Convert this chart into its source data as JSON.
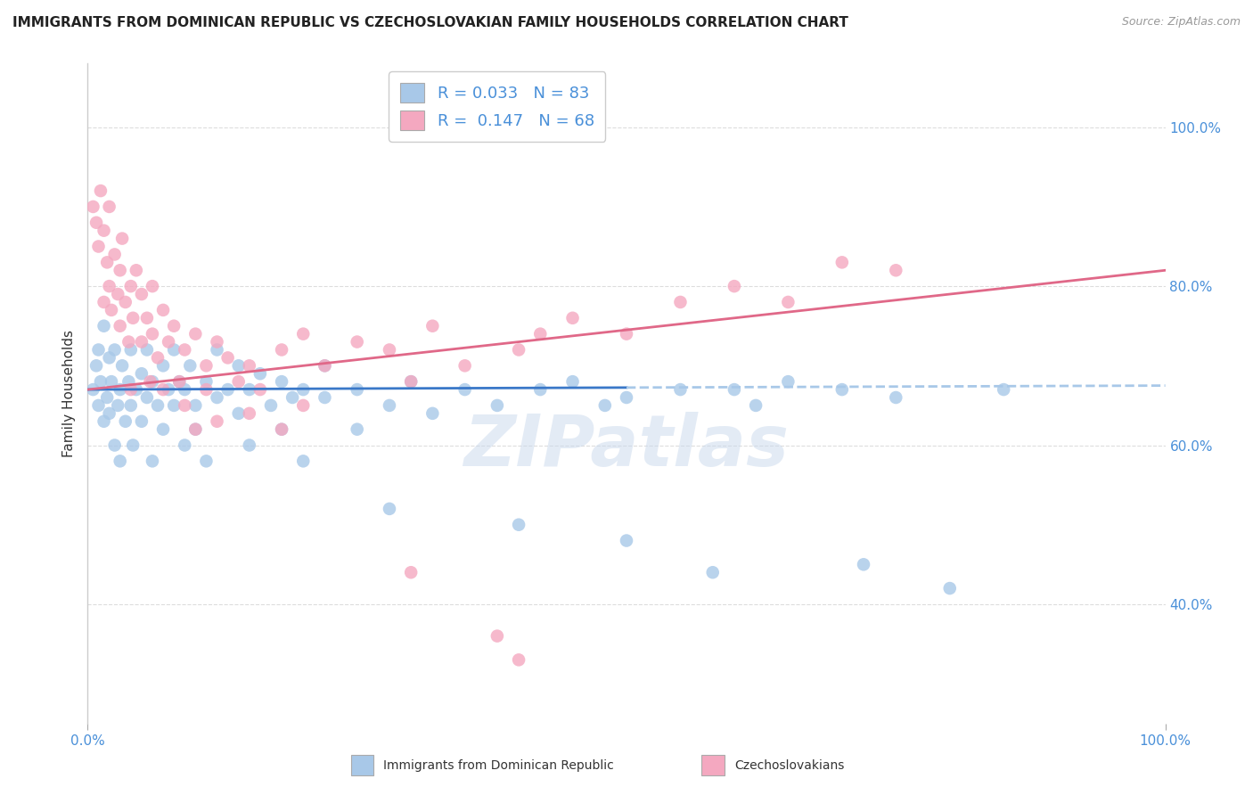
{
  "title": "IMMIGRANTS FROM DOMINICAN REPUBLIC VS CZECHOSLOVAKIAN FAMILY HOUSEHOLDS CORRELATION CHART",
  "source": "Source: ZipAtlas.com",
  "ylabel": "Family Households",
  "legend_blue_R": "0.033",
  "legend_blue_N": "83",
  "legend_pink_R": "0.147",
  "legend_pink_N": "68",
  "watermark": "ZIPatlas",
  "blue_color": "#a8c8e8",
  "pink_color": "#f4a8c0",
  "blue_line_solid_color": "#3a78c8",
  "blue_line_dash_color": "#a8c8e8",
  "pink_line_color": "#e06888",
  "blue_scatter": [
    [
      0.5,
      67.0
    ],
    [
      0.8,
      70.0
    ],
    [
      1.0,
      65.0
    ],
    [
      1.0,
      72.0
    ],
    [
      1.2,
      68.0
    ],
    [
      1.5,
      63.0
    ],
    [
      1.5,
      75.0
    ],
    [
      1.8,
      66.0
    ],
    [
      2.0,
      64.0
    ],
    [
      2.0,
      71.0
    ],
    [
      2.2,
      68.0
    ],
    [
      2.5,
      72.0
    ],
    [
      2.5,
      60.0
    ],
    [
      2.8,
      65.0
    ],
    [
      3.0,
      67.0
    ],
    [
      3.0,
      58.0
    ],
    [
      3.2,
      70.0
    ],
    [
      3.5,
      63.0
    ],
    [
      3.8,
      68.0
    ],
    [
      4.0,
      65.0
    ],
    [
      4.0,
      72.0
    ],
    [
      4.2,
      60.0
    ],
    [
      4.5,
      67.0
    ],
    [
      5.0,
      69.0
    ],
    [
      5.0,
      63.0
    ],
    [
      5.5,
      66.0
    ],
    [
      5.5,
      72.0
    ],
    [
      6.0,
      68.0
    ],
    [
      6.0,
      58.0
    ],
    [
      6.5,
      65.0
    ],
    [
      7.0,
      70.0
    ],
    [
      7.0,
      62.0
    ],
    [
      7.5,
      67.0
    ],
    [
      8.0,
      65.0
    ],
    [
      8.0,
      72.0
    ],
    [
      8.5,
      68.0
    ],
    [
      9.0,
      67.0
    ],
    [
      9.0,
      60.0
    ],
    [
      9.5,
      70.0
    ],
    [
      10.0,
      65.0
    ],
    [
      10.0,
      62.0
    ],
    [
      11.0,
      68.0
    ],
    [
      11.0,
      58.0
    ],
    [
      12.0,
      66.0
    ],
    [
      12.0,
      72.0
    ],
    [
      13.0,
      67.0
    ],
    [
      14.0,
      64.0
    ],
    [
      14.0,
      70.0
    ],
    [
      15.0,
      67.0
    ],
    [
      15.0,
      60.0
    ],
    [
      16.0,
      69.0
    ],
    [
      17.0,
      65.0
    ],
    [
      18.0,
      68.0
    ],
    [
      18.0,
      62.0
    ],
    [
      19.0,
      66.0
    ],
    [
      20.0,
      67.0
    ],
    [
      20.0,
      58.0
    ],
    [
      22.0,
      66.0
    ],
    [
      22.0,
      70.0
    ],
    [
      25.0,
      67.0
    ],
    [
      25.0,
      62.0
    ],
    [
      28.0,
      65.0
    ],
    [
      28.0,
      52.0
    ],
    [
      30.0,
      68.0
    ],
    [
      32.0,
      64.0
    ],
    [
      35.0,
      67.0
    ],
    [
      38.0,
      65.0
    ],
    [
      40.0,
      50.0
    ],
    [
      42.0,
      67.0
    ],
    [
      45.0,
      68.0
    ],
    [
      48.0,
      65.0
    ],
    [
      50.0,
      66.0
    ],
    [
      50.0,
      48.0
    ],
    [
      55.0,
      67.0
    ],
    [
      58.0,
      44.0
    ],
    [
      60.0,
      67.0
    ],
    [
      62.0,
      65.0
    ],
    [
      65.0,
      68.0
    ],
    [
      70.0,
      67.0
    ],
    [
      72.0,
      45.0
    ],
    [
      75.0,
      66.0
    ],
    [
      80.0,
      42.0
    ],
    [
      85.0,
      67.0
    ]
  ],
  "pink_scatter": [
    [
      0.5,
      90.0
    ],
    [
      0.8,
      88.0
    ],
    [
      1.0,
      85.0
    ],
    [
      1.2,
      92.0
    ],
    [
      1.5,
      87.0
    ],
    [
      1.5,
      78.0
    ],
    [
      1.8,
      83.0
    ],
    [
      2.0,
      80.0
    ],
    [
      2.0,
      90.0
    ],
    [
      2.2,
      77.0
    ],
    [
      2.5,
      84.0
    ],
    [
      2.8,
      79.0
    ],
    [
      3.0,
      82.0
    ],
    [
      3.0,
      75.0
    ],
    [
      3.2,
      86.0
    ],
    [
      3.5,
      78.0
    ],
    [
      3.8,
      73.0
    ],
    [
      4.0,
      80.0
    ],
    [
      4.0,
      67.0
    ],
    [
      4.2,
      76.0
    ],
    [
      4.5,
      82.0
    ],
    [
      5.0,
      73.0
    ],
    [
      5.0,
      79.0
    ],
    [
      5.5,
      76.0
    ],
    [
      5.8,
      68.0
    ],
    [
      6.0,
      74.0
    ],
    [
      6.0,
      80.0
    ],
    [
      6.5,
      71.0
    ],
    [
      7.0,
      77.0
    ],
    [
      7.0,
      67.0
    ],
    [
      7.5,
      73.0
    ],
    [
      8.0,
      75.0
    ],
    [
      8.5,
      68.0
    ],
    [
      9.0,
      72.0
    ],
    [
      9.0,
      65.0
    ],
    [
      10.0,
      74.0
    ],
    [
      10.0,
      62.0
    ],
    [
      11.0,
      70.0
    ],
    [
      11.0,
      67.0
    ],
    [
      12.0,
      73.0
    ],
    [
      12.0,
      63.0
    ],
    [
      13.0,
      71.0
    ],
    [
      14.0,
      68.0
    ],
    [
      15.0,
      70.0
    ],
    [
      15.0,
      64.0
    ],
    [
      16.0,
      67.0
    ],
    [
      18.0,
      72.0
    ],
    [
      18.0,
      62.0
    ],
    [
      20.0,
      74.0
    ],
    [
      20.0,
      65.0
    ],
    [
      22.0,
      70.0
    ],
    [
      25.0,
      73.0
    ],
    [
      28.0,
      72.0
    ],
    [
      30.0,
      68.0
    ],
    [
      30.0,
      44.0
    ],
    [
      32.0,
      75.0
    ],
    [
      35.0,
      70.0
    ],
    [
      38.0,
      36.0
    ],
    [
      40.0,
      72.0
    ],
    [
      40.0,
      33.0
    ],
    [
      42.0,
      74.0
    ],
    [
      45.0,
      76.0
    ],
    [
      50.0,
      74.0
    ],
    [
      55.0,
      78.0
    ],
    [
      60.0,
      80.0
    ],
    [
      65.0,
      78.0
    ],
    [
      70.0,
      83.0
    ],
    [
      75.0,
      82.0
    ]
  ],
  "xlim": [
    0,
    100
  ],
  "ylim": [
    25,
    108
  ],
  "yticks": [
    40.0,
    60.0,
    80.0,
    100.0
  ],
  "yticklabels": [
    "40.0%",
    "60.0%",
    "80.0%",
    "100.0%"
  ],
  "xtick_labels": [
    "0.0%",
    "100.0%"
  ],
  "grid_color": "#dddddd",
  "bg_color": "#ffffff",
  "title_fontsize": 11,
  "axis_label_fontsize": 11,
  "tick_fontsize": 11,
  "legend_fontsize": 13,
  "blue_line_intercept": 67.0,
  "blue_line_slope": 0.005,
  "pink_line_start": 67.0,
  "pink_line_end": 82.0
}
